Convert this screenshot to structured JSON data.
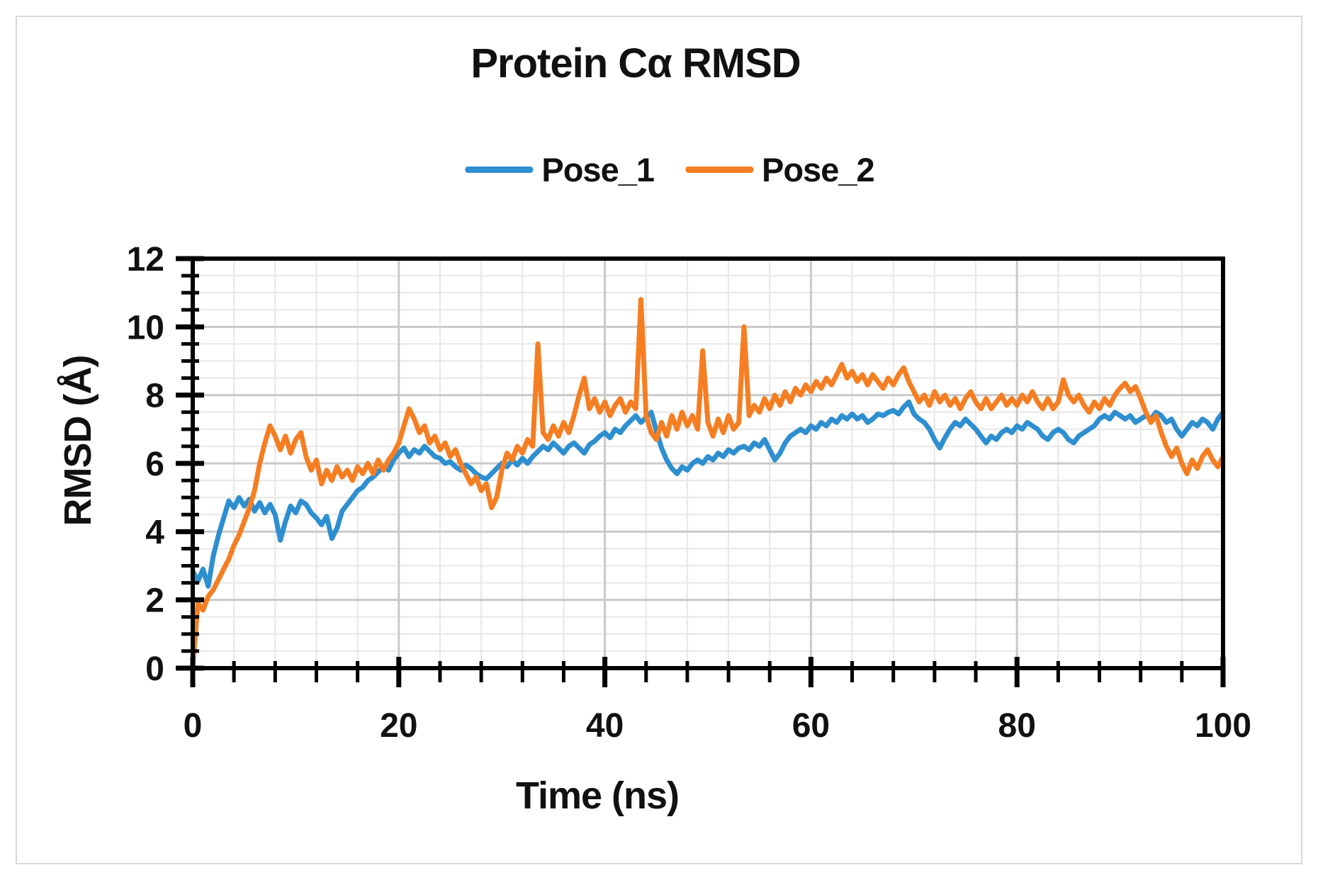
{
  "figure": {
    "title": "Protein Cα RMSD",
    "x_axis_title": "Time (ns)",
    "y_axis_title": "RMSD (Å)"
  },
  "colors": {
    "pose1_blue": "#2E8FD0",
    "pose2_orange": "#F57E22",
    "axis_black": "#000000",
    "grid_minor": "#e7e7e7",
    "grid_major": "#c9c9c9",
    "frame_border": "#d9d9d9",
    "background": "#ffffff",
    "text": "#111111"
  },
  "chart_data": {
    "type": "line",
    "title": "Protein Cα RMSD",
    "xlabel": "Time (ns)",
    "ylabel": "RMSD (Å)",
    "xlim": [
      0,
      100
    ],
    "ylim": [
      0,
      12
    ],
    "x_major_ticks": [
      0,
      20,
      40,
      60,
      80,
      100
    ],
    "x_minor_tick_step": 4,
    "y_major_ticks": [
      0,
      2,
      4,
      6,
      8,
      10,
      12
    ],
    "y_minor_tick_step": 0.5,
    "grid": "minor and major gridlines on, plot border on all four sides",
    "legend_position": "top-center",
    "x_start": 0,
    "x_step": 0.5,
    "series": [
      {
        "name": "Pose_1",
        "color": "#2E8FD0",
        "values": [
          2.85,
          2.55,
          2.9,
          2.4,
          3.3,
          3.9,
          4.4,
          4.9,
          4.7,
          5.0,
          4.75,
          4.95,
          4.6,
          4.85,
          4.55,
          4.8,
          4.5,
          3.75,
          4.3,
          4.75,
          4.55,
          4.9,
          4.8,
          4.55,
          4.4,
          4.2,
          4.45,
          3.8,
          4.1,
          4.6,
          4.8,
          5.0,
          5.2,
          5.3,
          5.5,
          5.6,
          5.75,
          5.9,
          5.8,
          6.1,
          6.3,
          6.45,
          6.2,
          6.4,
          6.3,
          6.5,
          6.35,
          6.2,
          6.15,
          6.0,
          6.05,
          5.9,
          5.8,
          5.95,
          5.85,
          5.7,
          5.6,
          5.55,
          5.7,
          5.85,
          6.0,
          5.9,
          6.1,
          5.95,
          6.15,
          6.0,
          6.2,
          6.35,
          6.5,
          6.4,
          6.6,
          6.45,
          6.3,
          6.5,
          6.6,
          6.45,
          6.3,
          6.55,
          6.65,
          6.8,
          6.9,
          6.75,
          7.0,
          6.9,
          7.1,
          7.25,
          7.4,
          7.2,
          7.35,
          7.5,
          6.95,
          6.45,
          6.1,
          5.85,
          5.7,
          5.9,
          5.8,
          6.0,
          6.1,
          6.0,
          6.2,
          6.1,
          6.3,
          6.2,
          6.4,
          6.3,
          6.45,
          6.5,
          6.4,
          6.6,
          6.5,
          6.7,
          6.4,
          6.1,
          6.3,
          6.6,
          6.8,
          6.9,
          7.0,
          6.9,
          7.1,
          7.0,
          7.2,
          7.1,
          7.3,
          7.2,
          7.4,
          7.3,
          7.45,
          7.3,
          7.4,
          7.2,
          7.3,
          7.45,
          7.4,
          7.5,
          7.55,
          7.45,
          7.65,
          7.8,
          7.45,
          7.3,
          7.2,
          7.0,
          6.7,
          6.45,
          6.75,
          7.0,
          7.2,
          7.1,
          7.3,
          7.15,
          7.0,
          6.8,
          6.6,
          6.8,
          6.7,
          6.9,
          7.0,
          6.9,
          7.1,
          7.0,
          7.2,
          7.1,
          7.0,
          6.8,
          6.7,
          6.9,
          7.0,
          6.9,
          6.7,
          6.6,
          6.8,
          6.9,
          7.0,
          7.1,
          7.3,
          7.4,
          7.3,
          7.5,
          7.4,
          7.3,
          7.4,
          7.2,
          7.3,
          7.4,
          7.3,
          7.5,
          7.4,
          7.2,
          7.3,
          7.0,
          6.8,
          7.0,
          7.2,
          7.1,
          7.3,
          7.2,
          7.0,
          7.3,
          7.5
        ]
      },
      {
        "name": "Pose_2",
        "color": "#F57E22",
        "values": [
          0.05,
          1.9,
          1.7,
          2.1,
          2.3,
          2.6,
          2.9,
          3.2,
          3.6,
          3.9,
          4.3,
          4.7,
          5.2,
          6.0,
          6.6,
          7.1,
          6.8,
          6.4,
          6.8,
          6.3,
          6.7,
          6.9,
          6.2,
          5.8,
          6.1,
          5.4,
          5.8,
          5.5,
          5.9,
          5.6,
          5.8,
          5.5,
          5.9,
          5.7,
          6.0,
          5.7,
          6.1,
          5.8,
          6.1,
          6.3,
          6.6,
          7.1,
          7.6,
          7.3,
          6.9,
          7.1,
          6.6,
          6.8,
          6.4,
          6.6,
          6.2,
          6.4,
          6.0,
          5.7,
          5.4,
          5.6,
          5.2,
          5.4,
          4.7,
          5.0,
          5.8,
          6.3,
          6.1,
          6.5,
          6.3,
          6.7,
          6.5,
          9.5,
          6.9,
          6.7,
          7.1,
          6.8,
          7.2,
          6.9,
          7.4,
          8.0,
          8.5,
          7.6,
          7.9,
          7.5,
          7.8,
          7.4,
          7.7,
          7.9,
          7.5,
          7.8,
          7.6,
          10.8,
          7.4,
          6.9,
          6.7,
          7.2,
          6.8,
          7.4,
          7.0,
          7.5,
          7.1,
          7.4,
          7.0,
          9.3,
          7.2,
          6.8,
          7.3,
          6.9,
          7.4,
          7.0,
          7.2,
          10.0,
          7.4,
          7.7,
          7.5,
          7.9,
          7.6,
          8.0,
          7.7,
          8.1,
          7.8,
          8.2,
          8.0,
          8.3,
          8.1,
          8.4,
          8.2,
          8.5,
          8.3,
          8.6,
          8.9,
          8.5,
          8.7,
          8.4,
          8.6,
          8.3,
          8.6,
          8.4,
          8.2,
          8.5,
          8.3,
          8.6,
          8.8,
          8.4,
          8.1,
          7.8,
          8.0,
          7.7,
          8.1,
          7.8,
          8.0,
          7.7,
          7.9,
          7.6,
          7.9,
          8.1,
          7.8,
          7.6,
          7.9,
          7.6,
          7.8,
          8.0,
          7.7,
          7.9,
          7.7,
          8.0,
          7.8,
          8.1,
          7.8,
          7.6,
          7.9,
          7.6,
          7.8,
          8.45,
          8.0,
          7.8,
          8.0,
          7.7,
          7.5,
          7.8,
          7.6,
          7.9,
          7.7,
          8.0,
          8.2,
          8.35,
          8.1,
          8.25,
          7.9,
          7.5,
          7.2,
          7.4,
          6.9,
          6.5,
          6.2,
          6.45,
          6.0,
          5.7,
          6.1,
          5.85,
          6.2,
          6.4,
          6.1,
          5.9,
          6.2
        ]
      }
    ]
  }
}
